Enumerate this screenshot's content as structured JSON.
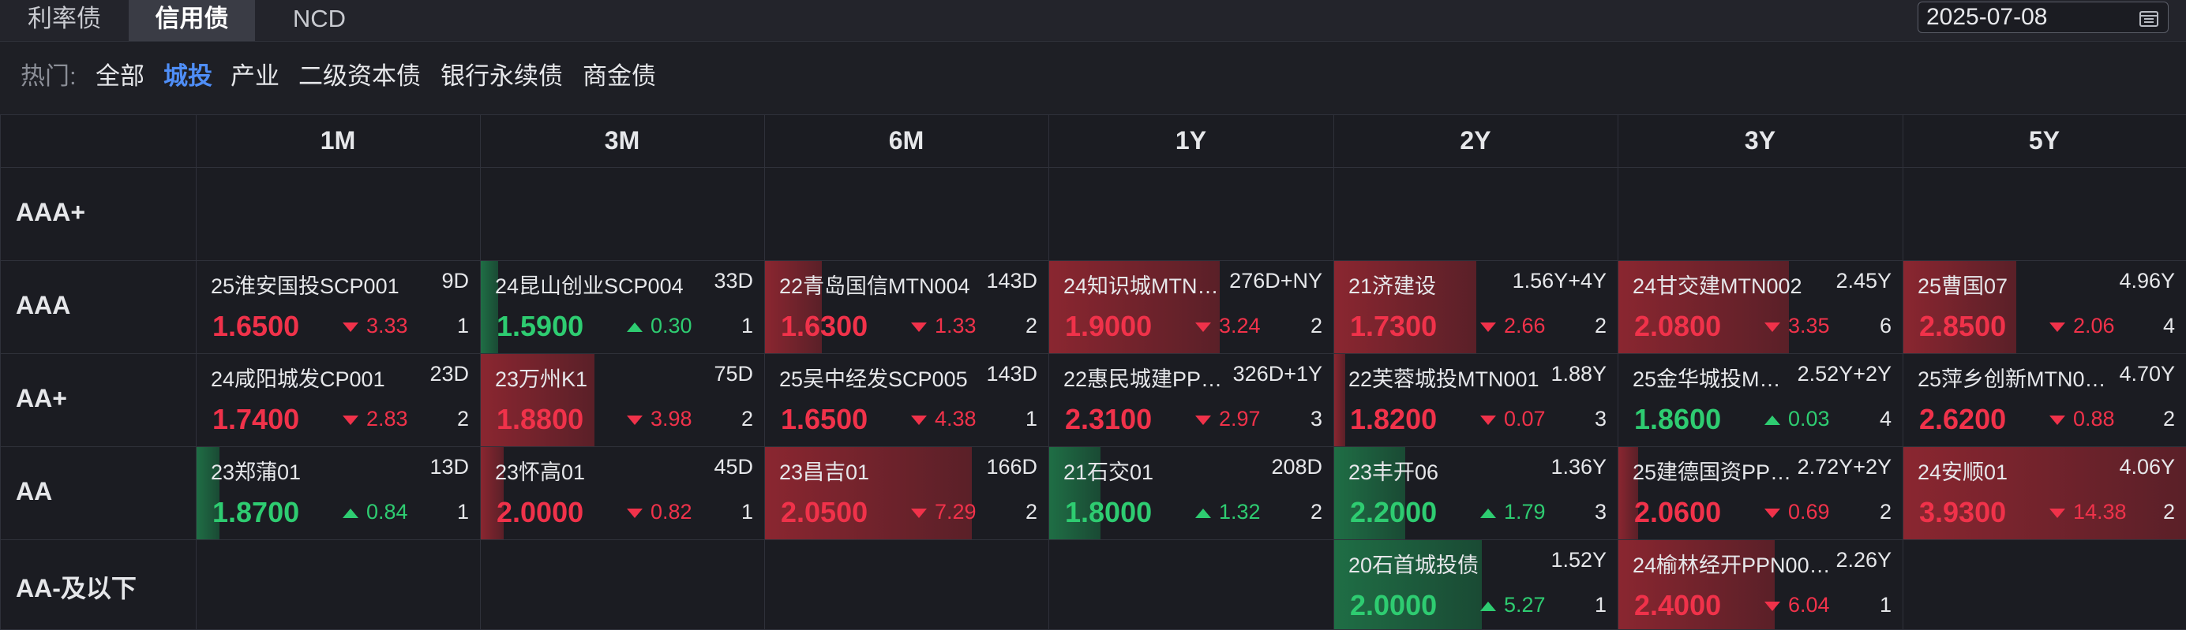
{
  "tabs": [
    {
      "label": "利率债",
      "active": false
    },
    {
      "label": "信用债",
      "active": true
    },
    {
      "label": "NCD",
      "active": false
    }
  ],
  "date": {
    "value": "2025-07-08",
    "icon": "calendar-icon"
  },
  "filters": {
    "label": "热门:",
    "items": [
      {
        "label": "全部",
        "active": false
      },
      {
        "label": "城投",
        "active": true
      },
      {
        "label": "产业",
        "active": false
      },
      {
        "label": "二级资本债",
        "active": false
      },
      {
        "label": "银行永续债",
        "active": false
      },
      {
        "label": "商金债",
        "active": false
      }
    ]
  },
  "colors": {
    "up": "#2ecc71",
    "down": "#f0324a",
    "accent": "#4f8ef7"
  },
  "columns": [
    "1M",
    "3M",
    "6M",
    "1Y",
    "2Y",
    "3Y",
    "5Y"
  ],
  "rows": [
    {
      "rating": "AAA+",
      "cells": [
        null,
        null,
        null,
        null,
        null,
        null,
        null
      ]
    },
    {
      "rating": "AAA",
      "cells": [
        {
          "name": "25淮安国投SCP001",
          "term": "9D",
          "yield": "1.6500",
          "dir": "down",
          "chg": "3.33",
          "count": "1",
          "level": 0.0
        },
        {
          "name": "24昆山创业SCP004",
          "term": "33D",
          "yield": "1.5900",
          "dir": "up",
          "chg": "0.30",
          "count": "1",
          "level": 0.06
        },
        {
          "name": "22青岛国信MTN004",
          "term": "143D",
          "yield": "1.6300",
          "dir": "down",
          "chg": "1.33",
          "count": "2",
          "level": 0.2
        },
        {
          "name": "24知识城MTN…",
          "term": "276D+NY",
          "yield": "1.9000",
          "dir": "down",
          "chg": "3.24",
          "count": "2",
          "level": 0.6
        },
        {
          "name": "21济建设",
          "term": "1.56Y+4Y",
          "yield": "1.7300",
          "dir": "down",
          "chg": "2.66",
          "count": "2",
          "level": 0.5
        },
        {
          "name": "24甘交建MTN002",
          "term": "2.45Y",
          "yield": "2.0800",
          "dir": "down",
          "chg": "3.35",
          "count": "6",
          "level": 0.6
        },
        {
          "name": "25曹国07",
          "term": "4.96Y",
          "yield": "2.8500",
          "dir": "down",
          "chg": "2.06",
          "count": "4",
          "level": 0.4
        }
      ]
    },
    {
      "rating": "AA+",
      "cells": [
        {
          "name": "24咸阳城发CP001",
          "term": "23D",
          "yield": "1.7400",
          "dir": "down",
          "chg": "2.83",
          "count": "2",
          "level": 0.0
        },
        {
          "name": "23万州K1",
          "term": "75D",
          "yield": "1.8800",
          "dir": "down",
          "chg": "3.98",
          "count": "2",
          "level": 0.4
        },
        {
          "name": "25吴中经发SCP005",
          "term": "143D",
          "yield": "1.6500",
          "dir": "down",
          "chg": "4.38",
          "count": "1",
          "level": 0.0
        },
        {
          "name": "22惠民城建PP…",
          "term": "326D+1Y",
          "yield": "2.3100",
          "dir": "down",
          "chg": "2.97",
          "count": "3",
          "level": 0.0
        },
        {
          "name": "22芙蓉城投MTN001",
          "term": "1.88Y",
          "yield": "1.8200",
          "dir": "down",
          "chg": "0.07",
          "count": "3",
          "level": 0.02
        },
        {
          "name": "25金华城投M…",
          "term": "2.52Y+2Y",
          "yield": "1.8600",
          "dir": "up",
          "chg": "0.03",
          "count": "4",
          "level": 0.0
        },
        {
          "name": "25萍乡创新MTN0…",
          "term": "4.70Y",
          "yield": "2.6200",
          "dir": "down",
          "chg": "0.88",
          "count": "2",
          "level": 0.0
        }
      ]
    },
    {
      "rating": "AA",
      "cells": [
        {
          "name": "23郑蒲01",
          "term": "13D",
          "yield": "1.8700",
          "dir": "up",
          "chg": "0.84",
          "count": "1",
          "level": 0.08
        },
        {
          "name": "23怀高01",
          "term": "45D",
          "yield": "2.0000",
          "dir": "down",
          "chg": "0.82",
          "count": "1",
          "level": 0.08
        },
        {
          "name": "23昌吉01",
          "term": "166D",
          "yield": "2.0500",
          "dir": "down",
          "chg": "7.29",
          "count": "2",
          "level": 0.73
        },
        {
          "name": "21石交01",
          "term": "208D",
          "yield": "1.8000",
          "dir": "up",
          "chg": "1.32",
          "count": "2",
          "level": 0.18
        },
        {
          "name": "23丰开06",
          "term": "1.36Y",
          "yield": "2.2000",
          "dir": "up",
          "chg": "1.79",
          "count": "3",
          "level": 0.25
        },
        {
          "name": "25建德国资PP…",
          "term": "2.72Y+2Y",
          "yield": "2.0600",
          "dir": "down",
          "chg": "0.69",
          "count": "2",
          "level": 0.07
        },
        {
          "name": "24安顺01",
          "term": "4.06Y",
          "yield": "3.9300",
          "dir": "down",
          "chg": "14.38",
          "count": "2",
          "level": 1.0
        }
      ]
    },
    {
      "rating": "AA-及以下",
      "cells": [
        null,
        null,
        null,
        null,
        {
          "name": "20石首城投债",
          "term": "1.52Y",
          "yield": "2.0000",
          "dir": "up",
          "chg": "5.27",
          "count": "1",
          "level": 0.52
        },
        {
          "name": "24榆林经开PPN00…",
          "term": "2.26Y",
          "yield": "2.4000",
          "dir": "down",
          "chg": "6.04",
          "count": "1",
          "level": 0.55
        },
        null
      ]
    }
  ]
}
